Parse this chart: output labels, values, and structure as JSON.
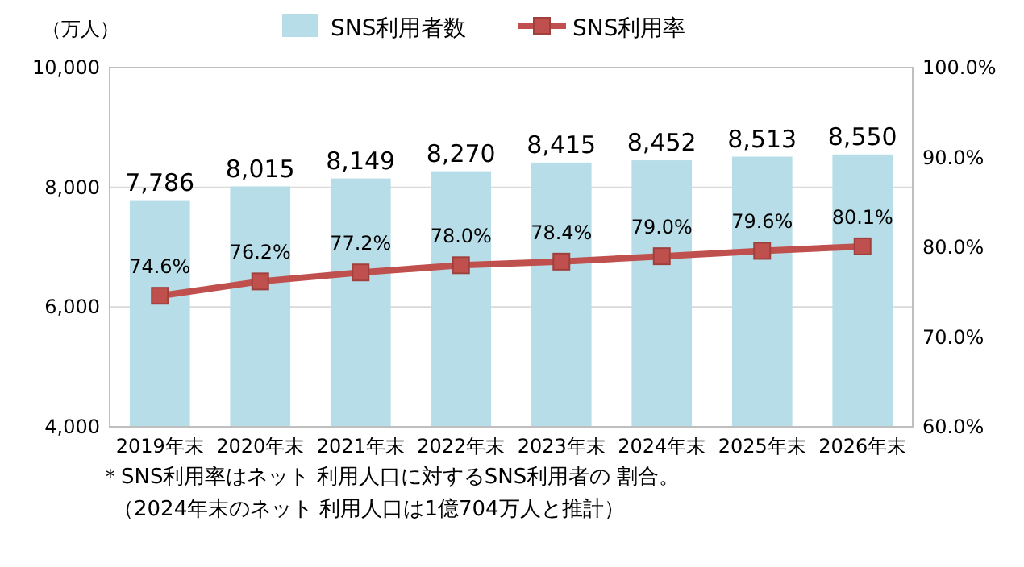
{
  "chart_data": {
    "type": "bar",
    "ylabel": "（万人）",
    "categories": [
      "2019年末",
      "2020年末",
      "2021年末",
      "2022年末",
      "2023年末",
      "2024年末",
      "2025年末",
      "2026年末"
    ],
    "series": [
      {
        "name": "SNS利用者数",
        "color": "#b7dde8",
        "values": [
          7786,
          8015,
          8149,
          8270,
          8415,
          8452,
          8513,
          8550
        ],
        "value_labels": [
          "7,786",
          "8,015",
          "8,149",
          "8,270",
          "8,415",
          "8,452",
          "8,513",
          "8,550"
        ]
      },
      {
        "name": "SNS利用率",
        "type": "line",
        "axis": "y2",
        "color": "#c0504d",
        "marker": "square",
        "values": [
          74.6,
          76.2,
          77.2,
          78.0,
          78.4,
          79.0,
          79.6,
          80.1
        ],
        "value_labels": [
          "74.6%",
          "76.2%",
          "77.2%",
          "78.0%",
          "78.4%",
          "79.0%",
          "79.6%",
          "80.1%"
        ]
      }
    ],
    "ylim": [
      4000,
      10000
    ],
    "yticks": [
      {
        "value": 4000,
        "label": "4,000"
      },
      {
        "value": 6000,
        "label": "6,000"
      },
      {
        "value": 8000,
        "label": "8,000"
      },
      {
        "value": 10000,
        "label": "10,000"
      }
    ],
    "y2lim": [
      60,
      100
    ],
    "y2ticks": [
      {
        "value": 60,
        "label": "60.0%"
      },
      {
        "value": 70,
        "label": "70.0%"
      },
      {
        "value": 80,
        "label": "80.0%"
      },
      {
        "value": 90,
        "label": "90.0%"
      },
      {
        "value": 100,
        "label": "100.0%"
      }
    ],
    "grid": "y",
    "legend": "top",
    "annotations": [
      "＊SNS利用率はネット 利用人口に対するSNS利用者の 割合。",
      "（2024年末のネット 利用人口は1億704万人と推計）"
    ]
  }
}
